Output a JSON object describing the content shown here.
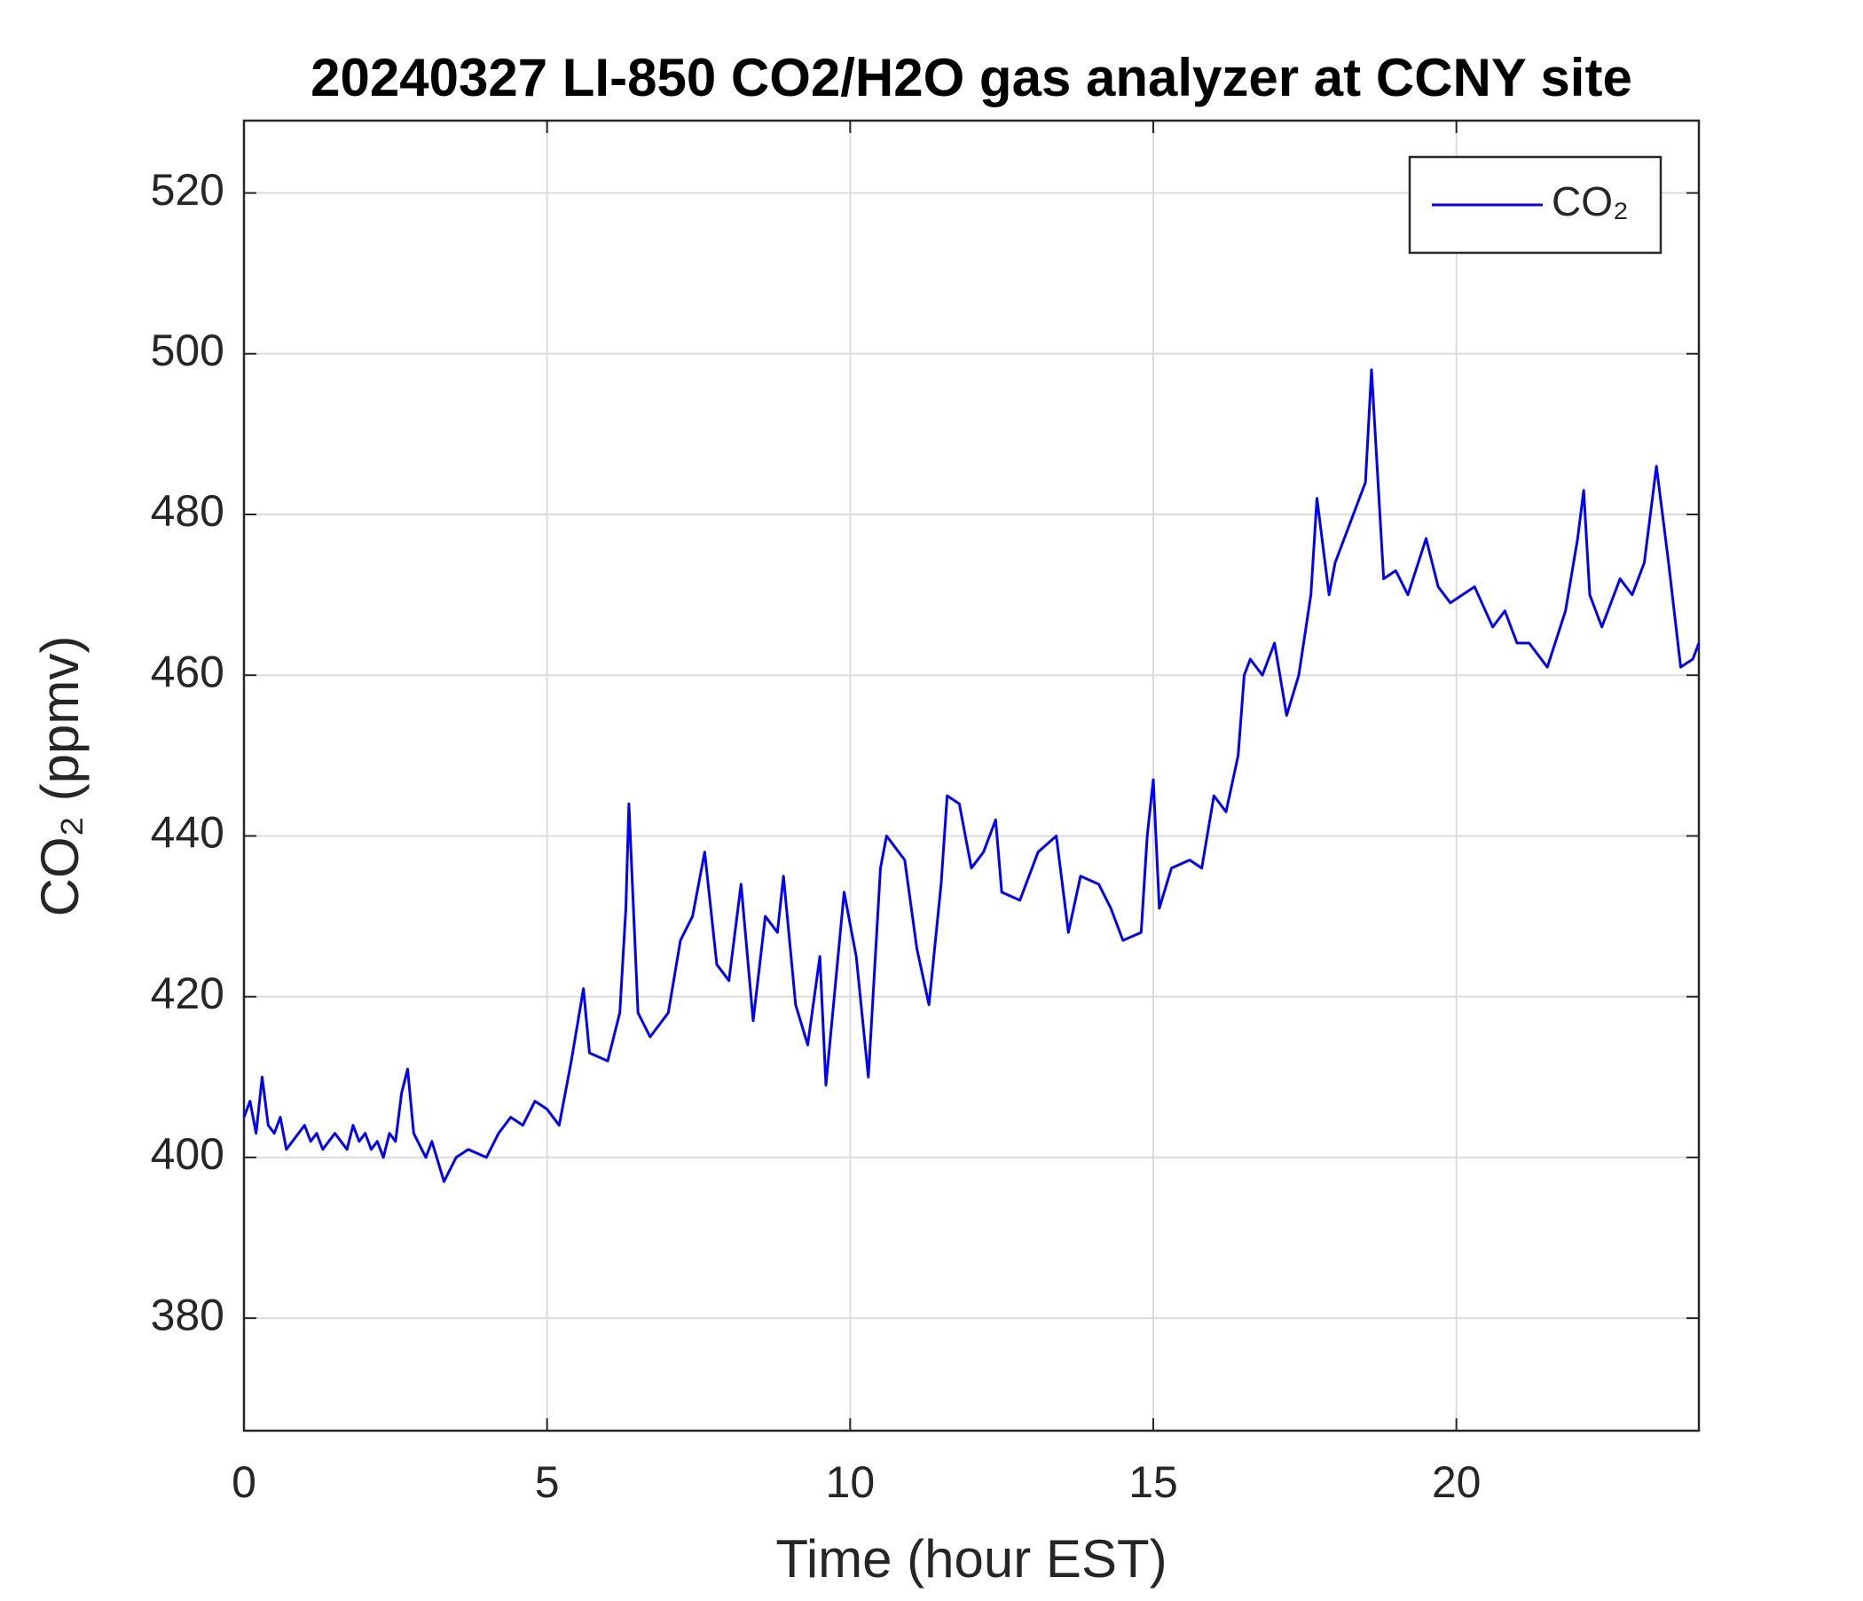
{
  "chart_data": {
    "type": "line",
    "title": "20240327 LI-850 CO2/H2O gas analyzer at CCNY site",
    "x_label": "Time (hour EST)",
    "y_label": "CO₂ (ppmv)",
    "xlim": [
      0,
      24
    ],
    "xticks": [
      0,
      5,
      10,
      15,
      20
    ],
    "ylim": [
      366,
      529
    ],
    "yticks": [
      380,
      400,
      420,
      440,
      460,
      480,
      500,
      520
    ],
    "grid": true,
    "legend": "upper right",
    "series": [
      {
        "name": "CO₂",
        "color": "#0000ff",
        "x": [
          0,
          0.1,
          0.2,
          0.3,
          0.4,
          0.5,
          0.6,
          0.7,
          0.8,
          0.9,
          1.0,
          1.1,
          1.2,
          1.3,
          1.4,
          1.5,
          1.6,
          1.7,
          1.8,
          1.9,
          2.0,
          2.1,
          2.2,
          2.3,
          2.4,
          2.5,
          2.6,
          2.7,
          2.8,
          3.0,
          3.1,
          3.3,
          3.5,
          3.7,
          4.0,
          4.2,
          4.4,
          4.6,
          4.8,
          5.0,
          5.2,
          5.4,
          5.6,
          5.7,
          6.0,
          6.2,
          6.3,
          6.35,
          6.5,
          6.7,
          7.0,
          7.2,
          7.4,
          7.6,
          7.8,
          8.0,
          8.2,
          8.4,
          8.6,
          8.8,
          8.9,
          9.1,
          9.3,
          9.5,
          9.6,
          9.8,
          9.9,
          10.1,
          10.3,
          10.5,
          10.6,
          10.9,
          11.1,
          11.3,
          11.5,
          11.6,
          11.8,
          12.0,
          12.2,
          12.4,
          12.5,
          12.8,
          13.1,
          13.4,
          13.6,
          13.8,
          14.1,
          14.3,
          14.5,
          14.8,
          14.9,
          15.0,
          15.1,
          15.3,
          15.6,
          15.8,
          16.0,
          16.2,
          16.4,
          16.5,
          16.6,
          16.8,
          17.0,
          17.2,
          17.4,
          17.6,
          17.7,
          17.9,
          18.0,
          18.3,
          18.5,
          18.6,
          18.8,
          19.0,
          19.2,
          19.5,
          19.7,
          19.9,
          20.1,
          20.3,
          20.6,
          20.8,
          21.0,
          21.2,
          21.5,
          21.8,
          22.0,
          22.1,
          22.2,
          22.4,
          22.7,
          22.9,
          23.1,
          23.3,
          23.5,
          23.7,
          23.9,
          24.0
        ],
        "values": [
          405,
          407,
          403,
          410,
          404,
          403,
          405,
          401,
          402,
          403,
          404,
          402,
          403,
          401,
          402,
          403,
          402,
          401,
          404,
          402,
          403,
          401,
          402,
          400,
          403,
          402,
          408,
          411,
          403,
          400,
          402,
          397,
          400,
          401,
          400,
          403,
          405,
          404,
          407,
          406,
          404,
          412,
          421,
          413,
          412,
          418,
          431,
          444,
          418,
          415,
          418,
          427,
          430,
          438,
          424,
          422,
          434,
          417,
          430,
          428,
          435,
          419,
          414,
          425,
          409,
          425,
          433,
          425,
          410,
          436,
          440,
          437,
          426,
          419,
          434,
          445,
          444,
          436,
          438,
          442,
          433,
          432,
          438,
          440,
          428,
          435,
          434,
          431,
          427,
          428,
          440,
          447,
          431,
          436,
          437,
          436,
          445,
          443,
          450,
          460,
          462,
          460,
          464,
          455,
          460,
          470,
          482,
          470,
          474,
          480,
          484,
          498,
          472,
          473,
          470,
          477,
          471,
          469,
          470,
          471,
          466,
          468,
          464,
          464,
          461,
          468,
          477,
          483,
          470,
          466,
          472,
          470,
          474,
          486,
          474,
          461,
          462,
          464
        ]
      }
    ]
  }
}
